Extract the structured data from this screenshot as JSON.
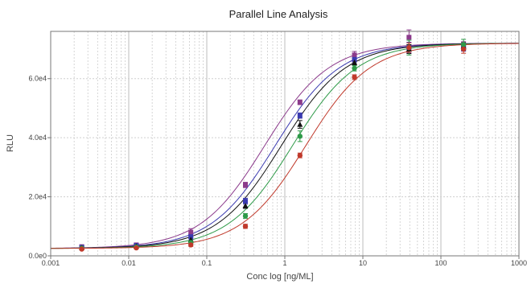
{
  "chart_data": {
    "type": "scatter",
    "title": "Parallel Line Analysis",
    "xlabel": "Conc log [ng/ML]",
    "ylabel": "RLU",
    "xscale": "log",
    "xlim": [
      0.001,
      1000
    ],
    "ylim": [
      0,
      76000
    ],
    "grid": "vertical minor and major lines on log x axis",
    "xticks": [
      {
        "value": 0.001,
        "label": "0.001"
      },
      {
        "value": 0.01,
        "label": "0.01"
      },
      {
        "value": 0.1,
        "label": "0.1"
      },
      {
        "value": 1,
        "label": "1"
      },
      {
        "value": 10,
        "label": "10"
      },
      {
        "value": 100,
        "label": "100"
      },
      {
        "value": 1000,
        "label": "1000"
      }
    ],
    "yticks": [
      {
        "value": 0,
        "label": "0.0e0"
      },
      {
        "value": 20000,
        "label": "2.0e4"
      },
      {
        "value": 40000,
        "label": "4.0e4"
      },
      {
        "value": 60000,
        "label": "6.0e4"
      }
    ],
    "x": [
      0.0025,
      0.0125,
      0.0625,
      0.3125,
      1.5625,
      7.8,
      39,
      195
    ],
    "series": [
      {
        "color": "#8b3a8b",
        "marker": "square",
        "ec50": 0.55,
        "values": [
          3100,
          3700,
          8000,
          24000,
          52000,
          68000,
          74000,
          71000
        ],
        "errors": [
          300,
          400,
          1200,
          900,
          800,
          1200,
          2500,
          1500
        ]
      },
      {
        "color": "#3a3ab0",
        "marker": "square",
        "ec50": 0.75,
        "values": [
          2900,
          3500,
          6500,
          18500,
          47500,
          66500,
          70500,
          70500
        ],
        "errors": [
          300,
          400,
          800,
          1000,
          900,
          900,
          1800,
          1200
        ]
      },
      {
        "color": "#111111",
        "marker": "triangle",
        "ec50": 0.9,
        "values": [
          2800,
          3300,
          5500,
          17000,
          44500,
          65500,
          70000,
          71000
        ],
        "errors": [
          300,
          400,
          700,
          900,
          1300,
          900,
          1500,
          1200
        ]
      },
      {
        "color": "#2e9a48",
        "marker": "circle",
        "ec50": 1.25,
        "values": [
          2600,
          3000,
          4500,
          13500,
          40500,
          63500,
          70500,
          71500
        ],
        "errors": [
          300,
          300,
          600,
          800,
          1800,
          900,
          2500,
          1800
        ]
      },
      {
        "color": "#c0392b",
        "marker": "circle",
        "ec50": 1.85,
        "values": [
          2300,
          2700,
          3700,
          10000,
          34000,
          60500,
          70500,
          70000
        ],
        "errors": [
          300,
          300,
          500,
          700,
          800,
          800,
          1600,
          1400
        ]
      }
    ],
    "curve": {
      "bottom": 2500,
      "top": 72000,
      "hill": 1.05
    }
  }
}
